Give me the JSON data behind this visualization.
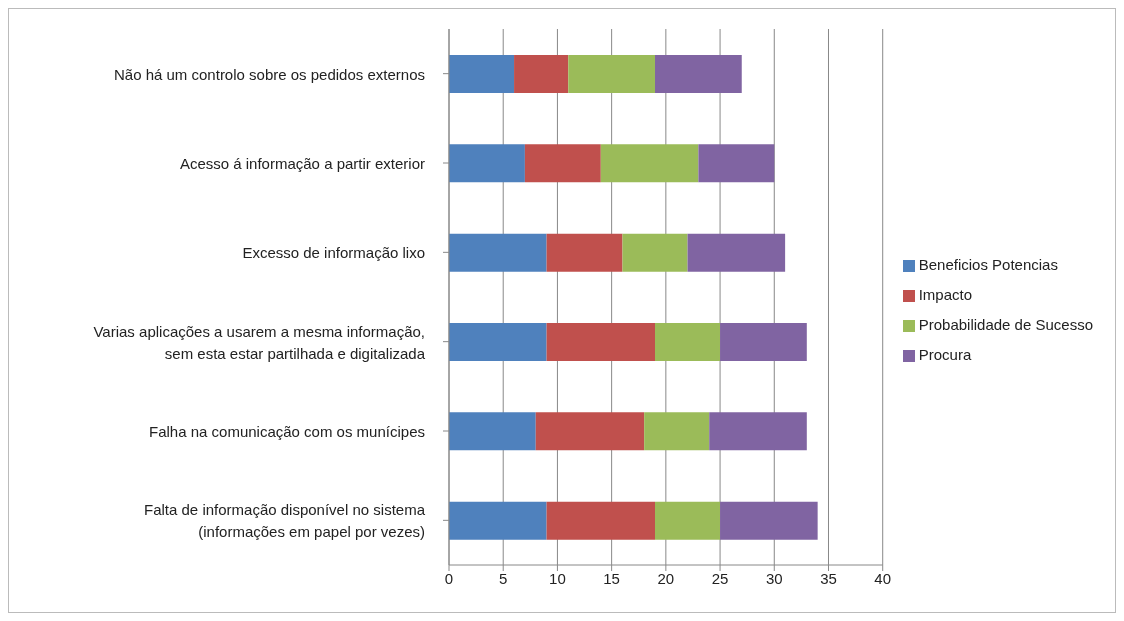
{
  "chart_data": {
    "type": "bar",
    "orientation": "horizontal",
    "stacked": true,
    "categories": [
      "Não há um controlo sobre os pedidos externos",
      "Acesso á informação a partir exterior",
      "Excesso de informação lixo",
      "Varias aplicações a usarem a mesma informação,\nsem esta estar partilhada e digitalizada",
      "Falha na comunicação com os munícipes",
      "Falta de informação disponível no sistema\n(informações em papel por vezes)"
    ],
    "series": [
      {
        "name": "Beneficios Potencias",
        "color": "#4f81bd",
        "values": [
          6,
          7,
          9,
          9,
          8,
          9
        ]
      },
      {
        "name": "Impacto",
        "color": "#c0504d",
        "values": [
          5,
          7,
          7,
          10,
          10,
          10
        ]
      },
      {
        "name": "Probabilidade de Sucesso",
        "color": "#9bbb59",
        "values": [
          8,
          9,
          6,
          6,
          6,
          6
        ]
      },
      {
        "name": "Procura",
        "color": "#8064a2",
        "values": [
          8,
          7,
          9,
          8,
          9,
          9
        ]
      }
    ],
    "xlim": [
      0,
      40
    ],
    "xticks": [
      0,
      5,
      10,
      15,
      20,
      25,
      30,
      35,
      40
    ],
    "grid": "x",
    "legend": "right"
  }
}
